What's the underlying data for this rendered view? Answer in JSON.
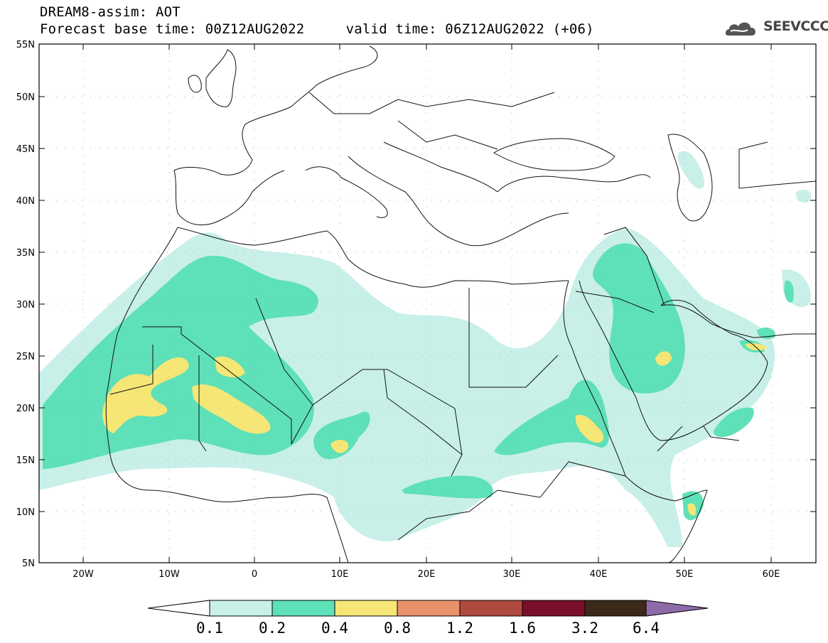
{
  "title": {
    "line1": "DREAM8-assim: AOT",
    "line2": "Forecast base time: 00Z12AUG2022     valid time: 06Z12AUG2022 (+06)"
  },
  "logo": {
    "text": "SEEVCCC",
    "icon": "cloud-icon"
  },
  "map": {
    "lon_range": [
      -25,
      65
    ],
    "lat_range": [
      5,
      55
    ],
    "lat_ticks": [
      "55N",
      "50N",
      "45N",
      "40N",
      "35N",
      "30N",
      "25N",
      "20N",
      "15N",
      "10N",
      "5N"
    ],
    "lon_ticks": [
      "20W",
      "10W",
      "0",
      "10E",
      "20E",
      "30E",
      "40E",
      "50E",
      "60E"
    ]
  },
  "colorbar": {
    "labels": [
      "0.1",
      "0.2",
      "0.4",
      "0.8",
      "1.2",
      "1.6",
      "3.2",
      "6.4"
    ],
    "colors": [
      "#ffffff",
      "#c8f0e8",
      "#5ee0b8",
      "#f5e676",
      "#e8916a",
      "#b14a3e",
      "#7a0f2c",
      "#3c2a18",
      "#8e6aa8"
    ]
  }
}
